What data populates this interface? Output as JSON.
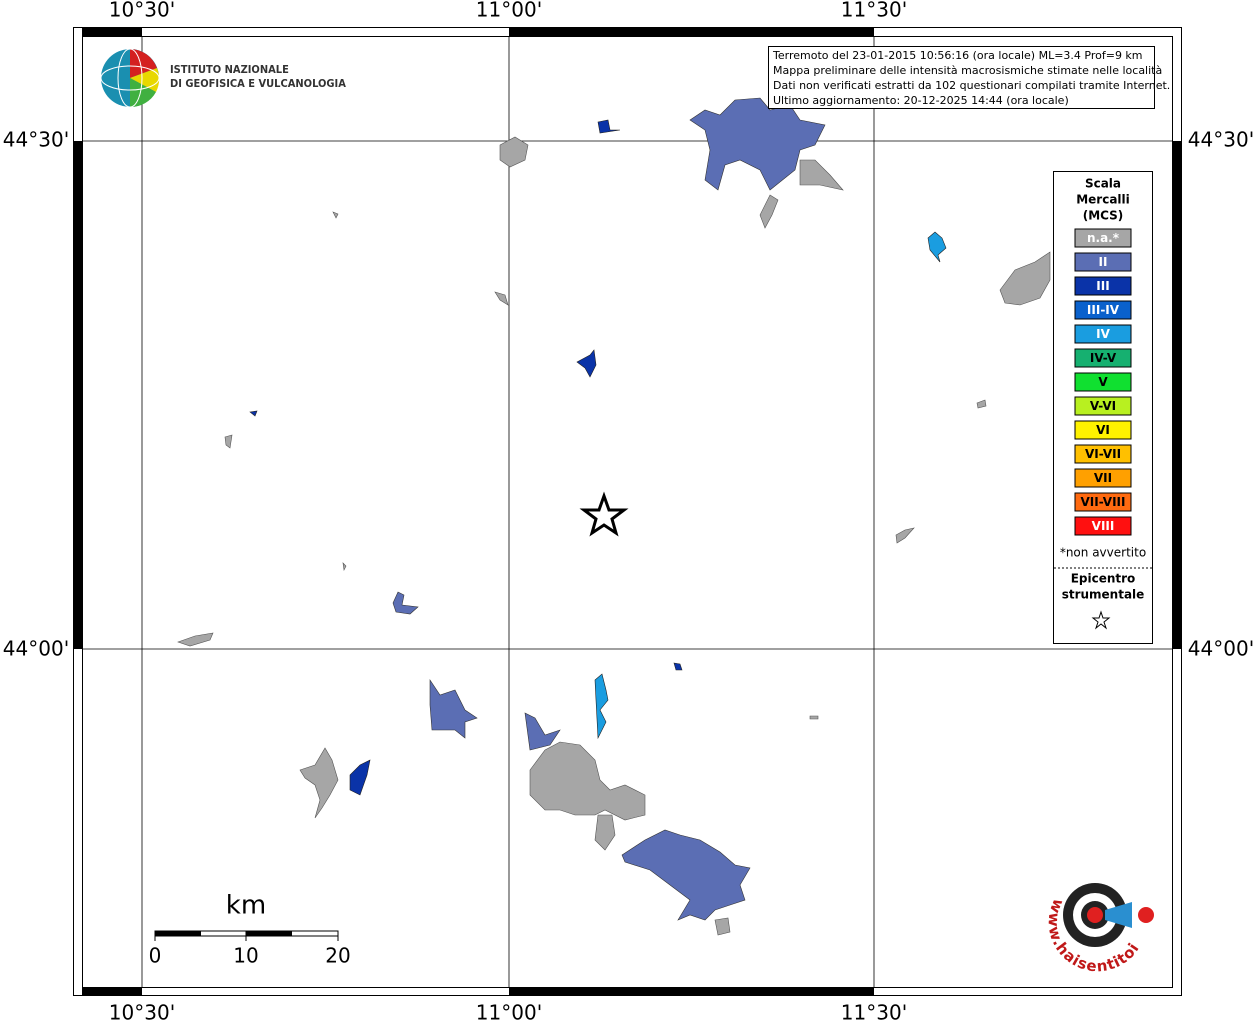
{
  "map": {
    "lon_labels": [
      "10°30'",
      "11°00'",
      "11°30'"
    ],
    "lat_labels": [
      "44°30'",
      "44°00'"
    ],
    "info": [
      "Terremoto del 23-01-2015 10:56:16 (ora locale) ML=3.4 Prof=9 km",
      "Mappa preliminare delle intensità macrosismiche stimate nelle località",
      "Dati non verificati estratti da 102 questionari compilati tramite Internet.",
      "Ultimo aggiornamento: 20-12-2025 14:44 (ora locale)"
    ],
    "institute": [
      "ISTITUTO NAZIONALE",
      "DI GEOFISICA E VULCANOLOGIA"
    ],
    "legend": {
      "title": [
        "Scala",
        "Mercalli",
        "(MCS)"
      ],
      "items": [
        {
          "label": "n.a.*",
          "color": "#a6a6a6",
          "text_color": "#ffffff"
        },
        {
          "label": "II",
          "color": "#5b6eb4",
          "text_color": "#ffffff"
        },
        {
          "label": "III",
          "color": "#0a33a8",
          "text_color": "#ffffff"
        },
        {
          "label": "III-IV",
          "color": "#0a61cc",
          "text_color": "#ffffff"
        },
        {
          "label": "IV",
          "color": "#1a9de0",
          "text_color": "#ffffff"
        },
        {
          "label": "IV-V",
          "color": "#16b070",
          "text_color": "#000000"
        },
        {
          "label": "V",
          "color": "#10e030",
          "text_color": "#000000"
        },
        {
          "label": "V-VI",
          "color": "#b8f020",
          "text_color": "#000000"
        },
        {
          "label": "VI",
          "color": "#fff200",
          "text_color": "#000000"
        },
        {
          "label": "VI-VII",
          "color": "#ffc000",
          "text_color": "#000000"
        },
        {
          "label": "VII",
          "color": "#ffa000",
          "text_color": "#000000"
        },
        {
          "label": "VII-VIII",
          "color": "#ff6a10",
          "text_color": "#000000"
        },
        {
          "label": "VIII",
          "color": "#ff1010",
          "text_color": "#ffffff"
        }
      ],
      "note": "*non avvertito",
      "epicenter": [
        "Epicentro",
        "strumentale"
      ]
    },
    "scale": {
      "unit": "km",
      "ticks": [
        "0",
        "10",
        "20"
      ]
    },
    "site_logo": "www.haisentitoilterremoto.it"
  }
}
